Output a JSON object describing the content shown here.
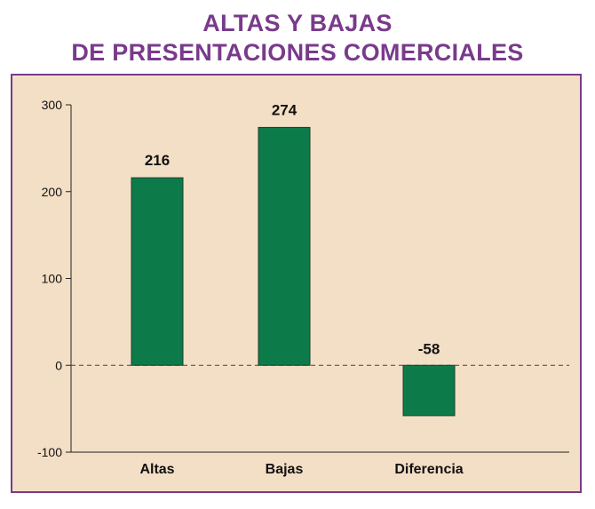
{
  "chart_data": {
    "type": "bar",
    "title_line1": "ALTAS Y BAJAS",
    "title_line2": "DE PRESENTACIONES COMERCIALES",
    "categories": [
      "Altas",
      "Bajas",
      "Diferencia"
    ],
    "values": [
      216,
      274,
      -58
    ],
    "data_labels": [
      "216",
      "274",
      "-58"
    ],
    "yticks": [
      300,
      200,
      100,
      0,
      -100
    ],
    "ylim": [
      -100,
      300
    ],
    "bar_color": "#0d7a4a",
    "background_color": "#f3dfc5",
    "title_color": "#7a3a8c",
    "zero_line": "dashed",
    "legend": "none"
  }
}
